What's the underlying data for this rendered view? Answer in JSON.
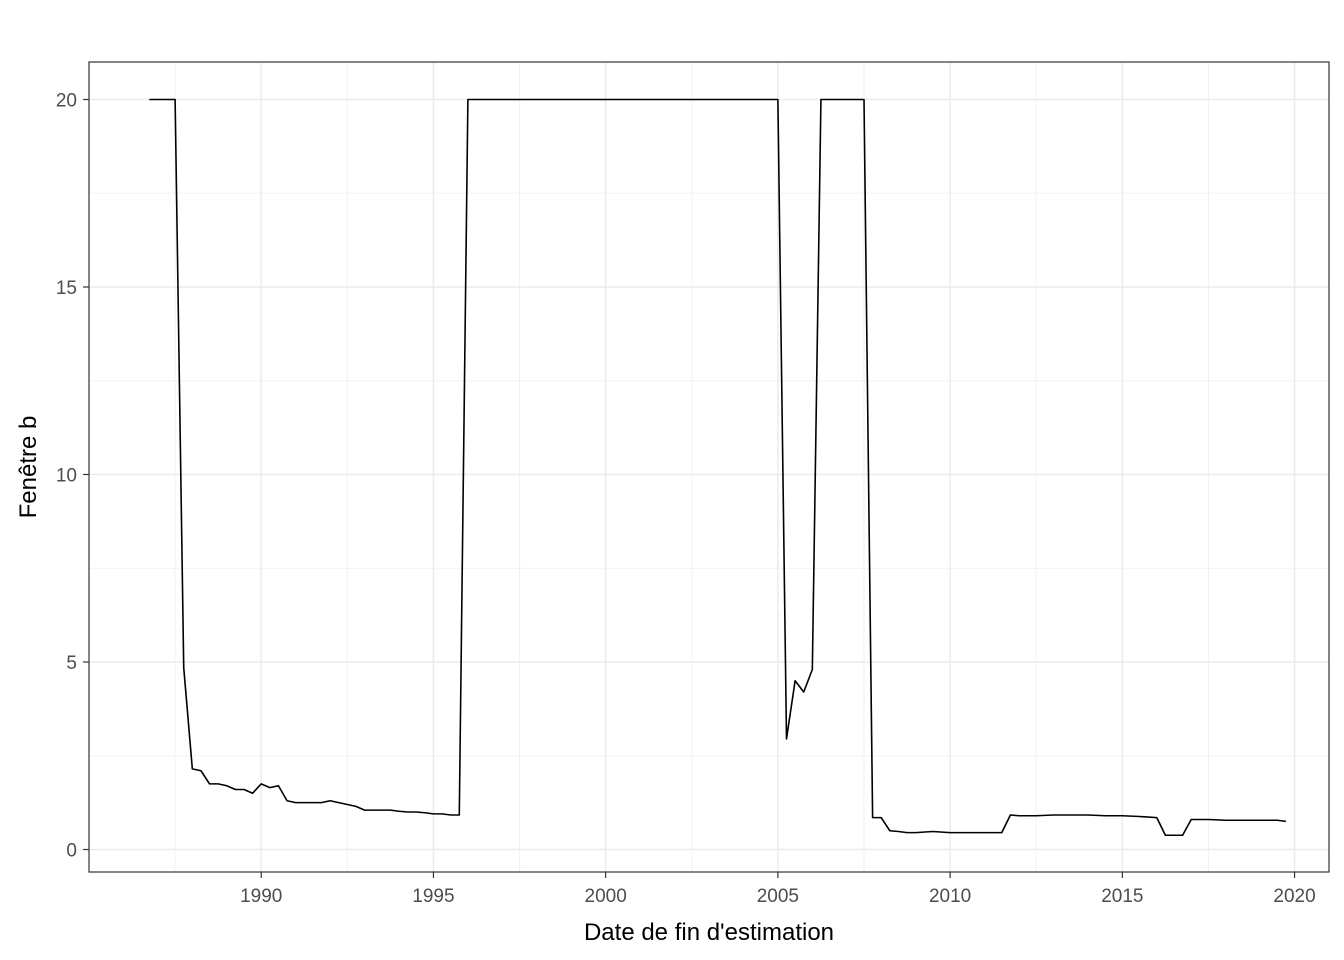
{
  "chart_data": {
    "type": "line",
    "title": "",
    "xlabel": "Date de fin d'estimation",
    "ylabel": "Fenêtre b",
    "xlim": [
      1985.0,
      2021.0
    ],
    "ylim": [
      -0.6,
      21.0
    ],
    "x_major_ticks": [
      1990,
      1995,
      2000,
      2005,
      2010,
      2015,
      2020
    ],
    "x_tick_labels": [
      "1990",
      "1995",
      "2000",
      "2005",
      "2010",
      "2015",
      "2020"
    ],
    "y_major_ticks": [
      0,
      5,
      10,
      15,
      20
    ],
    "y_tick_labels": [
      "0",
      "5",
      "10",
      "15",
      "20"
    ],
    "grid": true,
    "theme": "bw",
    "series": [
      {
        "name": "",
        "color": "#000000",
        "x": [
          1986.75,
          1987.5,
          1987.75,
          1988.0,
          1988.25,
          1988.5,
          1988.75,
          1989.0,
          1989.25,
          1989.5,
          1989.75,
          1990.0,
          1990.25,
          1990.5,
          1990.75,
          1991.0,
          1991.25,
          1991.5,
          1991.75,
          1992.0,
          1992.25,
          1992.5,
          1992.75,
          1993.0,
          1993.25,
          1993.5,
          1993.75,
          1994.0,
          1994.25,
          1994.5,
          1994.75,
          1995.0,
          1995.25,
          1995.5,
          1995.75,
          1996.0,
          1996.25,
          2005.0,
          2005.25,
          2005.5,
          2005.75,
          2006.0,
          2006.25,
          2006.5,
          2006.75,
          2007.0,
          2007.5,
          2007.75,
          2008.0,
          2008.25,
          2008.5,
          2008.75,
          2009.0,
          2009.5,
          2010.0,
          2010.5,
          2011.0,
          2011.5,
          2011.75,
          2012.0,
          2012.5,
          2013.0,
          2013.5,
          2014.0,
          2014.5,
          2015.0,
          2015.5,
          2016.0,
          2016.25,
          2016.5,
          2016.75,
          2017.0,
          2017.5,
          2018.0,
          2018.5,
          2019.0,
          2019.5,
          2019.75
        ],
        "y": [
          20.0,
          20.0,
          4.85,
          2.15,
          2.1,
          1.75,
          1.75,
          1.7,
          1.6,
          1.6,
          1.5,
          1.75,
          1.65,
          1.7,
          1.3,
          1.25,
          1.25,
          1.25,
          1.25,
          1.3,
          1.25,
          1.2,
          1.15,
          1.05,
          1.05,
          1.05,
          1.05,
          1.02,
          1.0,
          1.0,
          0.98,
          0.95,
          0.95,
          0.92,
          0.92,
          20.0,
          20.0,
          20.0,
          2.95,
          4.5,
          4.2,
          4.8,
          20.0,
          20.0,
          20.0,
          20.0,
          20.0,
          0.85,
          0.85,
          0.5,
          0.48,
          0.45,
          0.45,
          0.48,
          0.45,
          0.45,
          0.45,
          0.45,
          0.92,
          0.9,
          0.9,
          0.92,
          0.92,
          0.92,
          0.9,
          0.9,
          0.88,
          0.85,
          0.38,
          0.38,
          0.38,
          0.8,
          0.8,
          0.78,
          0.78,
          0.78,
          0.78,
          0.75
        ]
      }
    ]
  }
}
